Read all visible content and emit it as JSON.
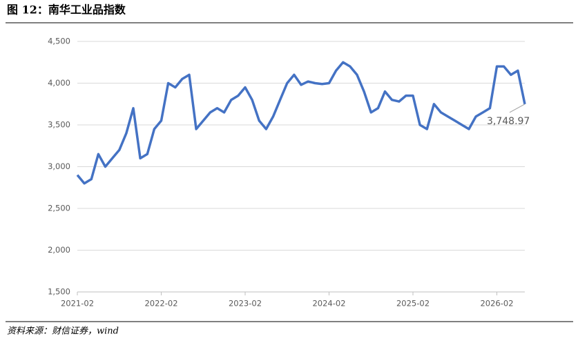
{
  "chart_data": {
    "type": "line",
    "title": "图 12：南华工业品指数",
    "source": "资料来源：财信证券，wind",
    "x": [
      "2021-02",
      "2021-03",
      "2021-04",
      "2021-05",
      "2021-06",
      "2021-07",
      "2021-08",
      "2021-09",
      "2021-10",
      "2021-11",
      "2021-12",
      "2022-01",
      "2022-02",
      "2022-03",
      "2022-04",
      "2022-05",
      "2022-06",
      "2022-07",
      "2022-08",
      "2022-09",
      "2022-10",
      "2022-11",
      "2022-12",
      "2023-01",
      "2023-02",
      "2023-03",
      "2023-04",
      "2023-05",
      "2023-06",
      "2023-07",
      "2023-08",
      "2023-09",
      "2023-10",
      "2023-11",
      "2023-12",
      "2024-01",
      "2024-02",
      "2024-03",
      "2024-04",
      "2024-05",
      "2024-06",
      "2024-07",
      "2024-08",
      "2024-09",
      "2024-10",
      "2024-11",
      "2024-12",
      "2025-01",
      "2025-02",
      "2025-03",
      "2025-04",
      "2025-05",
      "2025-06",
      "2025-07",
      "2025-08",
      "2025-09",
      "2025-10",
      "2025-11",
      "2025-12",
      "2026-01",
      "2026-02",
      "2026-03",
      "2026-04",
      "2026-05",
      "2026-06"
    ],
    "series": [
      {
        "color": "#4472c4",
        "values": [
          2900,
          2800,
          2850,
          3150,
          3000,
          3100,
          3200,
          3400,
          3700,
          3100,
          3150,
          3450,
          3550,
          4000,
          3950,
          4050,
          4100,
          3450,
          3550,
          3650,
          3700,
          3650,
          3800,
          3850,
          3950,
          3800,
          3550,
          3450,
          3600,
          3800,
          4000,
          4100,
          3980,
          4020,
          4000,
          3990,
          4000,
          4150,
          4250,
          4200,
          4100,
          3900,
          3650,
          3700,
          3900,
          3800,
          3780,
          3850,
          3850,
          3500,
          3450,
          3750,
          3650,
          3600,
          3550,
          3500,
          3450,
          3600,
          3650,
          3700,
          4200,
          4200,
          4100,
          4150,
          3748.97
        ]
      }
    ],
    "annotation": {
      "label": "3,748.97",
      "value": 3748.97
    },
    "xlim": [
      "2021-02",
      "2026-06"
    ],
    "xticks": [
      "2021-02",
      "2022-02",
      "2023-02",
      "2024-02",
      "2025-02",
      "2026-02"
    ],
    "ylim": [
      1500,
      4500
    ],
    "yticks": [
      {
        "value": 1500,
        "label": "1,500"
      },
      {
        "value": 2000,
        "label": "2,000"
      },
      {
        "value": 2500,
        "label": "2,500"
      },
      {
        "value": 3000,
        "label": "3,000"
      },
      {
        "value": 3500,
        "label": "3,500"
      },
      {
        "value": 4000,
        "label": "4,000"
      },
      {
        "value": 4500,
        "label": "4,500"
      }
    ],
    "grid": true
  }
}
